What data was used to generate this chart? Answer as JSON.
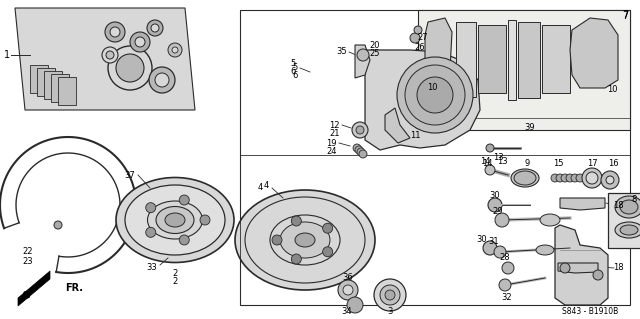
{
  "bg_color": "#ffffff",
  "fig_width": 6.4,
  "fig_height": 3.19,
  "diagram_code": "S843 - B1910B",
  "fr_label": "FR.",
  "line_color": "#2a2a2a",
  "text_color": "#000000",
  "light_gray": "#d8d8d8",
  "mid_gray": "#aaaaaa",
  "dark_gray": "#888888",
  "part_bg": "#f0f0ec"
}
